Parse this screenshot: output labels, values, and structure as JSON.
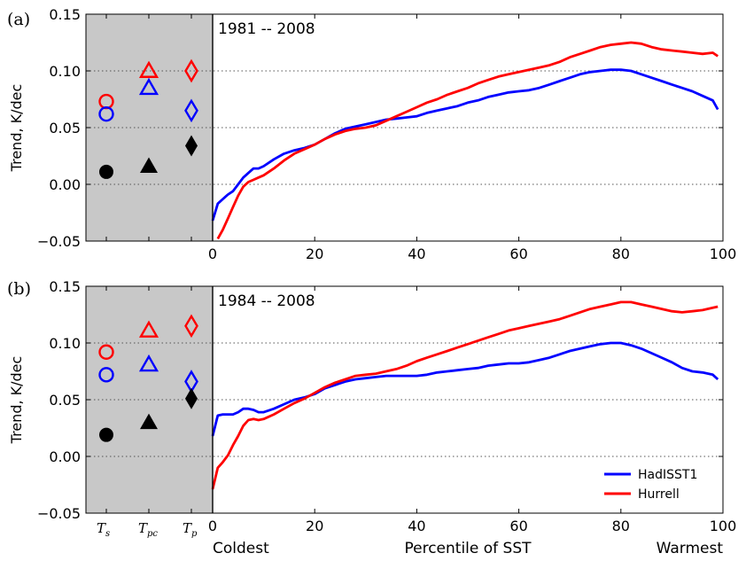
{
  "chart_data": [
    {
      "type": "line",
      "panel_label": "(a)",
      "period": "1981 -- 2008",
      "ylabel": "Trend, K/dec",
      "ylim": [
        -0.05,
        0.15
      ],
      "yticks": [
        "−0.05",
        "0.00",
        "0.05",
        "0.10",
        "0.15"
      ],
      "xlim": [
        0,
        100
      ],
      "xticks": [
        "0",
        "20",
        "40",
        "60",
        "80",
        "100"
      ],
      "grid_y": [
        0.0,
        0.05,
        0.1
      ],
      "markers": [
        {
          "category": "Ts",
          "shape": "circle",
          "color": "#ff0000",
          "filled": false,
          "value": 0.073
        },
        {
          "category": "Ts",
          "shape": "circle",
          "color": "#0000ff",
          "filled": false,
          "value": 0.062
        },
        {
          "category": "Ts",
          "shape": "circle",
          "color": "#000000",
          "filled": true,
          "value": 0.011
        },
        {
          "category": "Tpc",
          "shape": "triangle",
          "color": "#ff0000",
          "filled": false,
          "value": 0.1
        },
        {
          "category": "Tpc",
          "shape": "triangle",
          "color": "#0000ff",
          "filled": false,
          "value": 0.085
        },
        {
          "category": "Tpc",
          "shape": "triangle",
          "color": "#000000",
          "filled": true,
          "value": 0.016
        },
        {
          "category": "Tp",
          "shape": "diamond",
          "color": "#ff0000",
          "filled": false,
          "value": 0.1
        },
        {
          "category": "Tp",
          "shape": "diamond",
          "color": "#0000ff",
          "filled": false,
          "value": 0.065
        },
        {
          "category": "Tp",
          "shape": "diamond",
          "color": "#000000",
          "filled": true,
          "value": 0.034
        }
      ],
      "series": [
        {
          "color": "#0000ff",
          "x": [
            0,
            1,
            2,
            3,
            4,
            5,
            6,
            7,
            8,
            9,
            10,
            12,
            14,
            16,
            18,
            20,
            22,
            24,
            26,
            28,
            30,
            32,
            34,
            36,
            38,
            40,
            42,
            44,
            46,
            48,
            50,
            52,
            54,
            56,
            58,
            60,
            62,
            64,
            66,
            68,
            70,
            72,
            74,
            76,
            78,
            80,
            82,
            84,
            86,
            88,
            90,
            92,
            94,
            96,
            98,
            99
          ],
          "y": [
            -0.032,
            -0.017,
            -0.013,
            -0.009,
            -0.006,
            0.0,
            0.006,
            0.01,
            0.014,
            0.014,
            0.016,
            0.022,
            0.027,
            0.03,
            0.032,
            0.035,
            0.04,
            0.045,
            0.049,
            0.051,
            0.053,
            0.055,
            0.057,
            0.058,
            0.059,
            0.06,
            0.063,
            0.065,
            0.067,
            0.069,
            0.072,
            0.074,
            0.077,
            0.079,
            0.081,
            0.082,
            0.083,
            0.085,
            0.088,
            0.091,
            0.094,
            0.097,
            0.099,
            0.1,
            0.101,
            0.101,
            0.1,
            0.097,
            0.094,
            0.091,
            0.088,
            0.085,
            0.082,
            0.078,
            0.074,
            0.066
          ]
        },
        {
          "color": "#ff0000",
          "x": [
            1,
            2,
            3,
            4,
            5,
            6,
            7,
            8,
            9,
            10,
            12,
            14,
            16,
            18,
            20,
            22,
            24,
            26,
            28,
            30,
            32,
            34,
            36,
            38,
            40,
            42,
            44,
            46,
            48,
            50,
            52,
            54,
            56,
            58,
            60,
            62,
            64,
            66,
            68,
            70,
            72,
            74,
            76,
            78,
            80,
            82,
            84,
            86,
            88,
            90,
            92,
            94,
            96,
            98,
            99
          ],
          "y": [
            -0.048,
            -0.04,
            -0.03,
            -0.02,
            -0.01,
            -0.002,
            0.002,
            0.004,
            0.006,
            0.008,
            0.014,
            0.021,
            0.027,
            0.031,
            0.035,
            0.04,
            0.044,
            0.047,
            0.049,
            0.05,
            0.052,
            0.056,
            0.06,
            0.064,
            0.068,
            0.072,
            0.075,
            0.079,
            0.082,
            0.085,
            0.089,
            0.092,
            0.095,
            0.097,
            0.099,
            0.101,
            0.103,
            0.105,
            0.108,
            0.112,
            0.115,
            0.118,
            0.121,
            0.123,
            0.124,
            0.125,
            0.124,
            0.121,
            0.119,
            0.118,
            0.117,
            0.116,
            0.115,
            0.116,
            0.113
          ]
        }
      ]
    },
    {
      "type": "line",
      "panel_label": "(b)",
      "period": "1984 -- 2008",
      "ylabel": "Trend, K/dec",
      "ylim": [
        -0.05,
        0.15
      ],
      "yticks": [
        "−0.05",
        "0.00",
        "0.05",
        "0.10",
        "0.15"
      ],
      "xlim": [
        0,
        100
      ],
      "xticks": [
        "0",
        "20",
        "40",
        "60",
        "80",
        "100"
      ],
      "grid_y": [
        0.0,
        0.05,
        0.1
      ],
      "xlabel": "Percentile of SST",
      "xlabel_left": "Coldest",
      "xlabel_right": "Warmest",
      "categories": [
        "Ts",
        "Tpc",
        "Tp"
      ],
      "legend_position": "lower-right",
      "markers": [
        {
          "category": "Ts",
          "shape": "circle",
          "color": "#ff0000",
          "filled": false,
          "value": 0.092
        },
        {
          "category": "Ts",
          "shape": "circle",
          "color": "#0000ff",
          "filled": false,
          "value": 0.072
        },
        {
          "category": "Ts",
          "shape": "circle",
          "color": "#000000",
          "filled": true,
          "value": 0.019
        },
        {
          "category": "Tpc",
          "shape": "triangle",
          "color": "#ff0000",
          "filled": false,
          "value": 0.111
        },
        {
          "category": "Tpc",
          "shape": "triangle",
          "color": "#0000ff",
          "filled": false,
          "value": 0.081
        },
        {
          "category": "Tpc",
          "shape": "triangle",
          "color": "#000000",
          "filled": true,
          "value": 0.03
        },
        {
          "category": "Tp",
          "shape": "diamond",
          "color": "#ff0000",
          "filled": false,
          "value": 0.115
        },
        {
          "category": "Tp",
          "shape": "diamond",
          "color": "#0000ff",
          "filled": false,
          "value": 0.066
        },
        {
          "category": "Tp",
          "shape": "diamond",
          "color": "#000000",
          "filled": true,
          "value": 0.051
        }
      ],
      "series": [
        {
          "name": "HadISST1",
          "color": "#0000ff",
          "x": [
            0,
            1,
            2,
            3,
            4,
            5,
            6,
            7,
            8,
            9,
            10,
            12,
            14,
            16,
            18,
            20,
            22,
            24,
            26,
            28,
            30,
            32,
            34,
            36,
            38,
            40,
            42,
            44,
            46,
            48,
            50,
            52,
            54,
            56,
            58,
            60,
            62,
            64,
            66,
            68,
            70,
            72,
            74,
            76,
            78,
            80,
            82,
            84,
            86,
            88,
            90,
            92,
            94,
            96,
            98,
            99
          ],
          "y": [
            0.018,
            0.036,
            0.037,
            0.037,
            0.037,
            0.039,
            0.042,
            0.042,
            0.041,
            0.039,
            0.039,
            0.042,
            0.046,
            0.05,
            0.052,
            0.055,
            0.06,
            0.063,
            0.066,
            0.068,
            0.069,
            0.07,
            0.071,
            0.071,
            0.071,
            0.071,
            0.072,
            0.074,
            0.075,
            0.076,
            0.077,
            0.078,
            0.08,
            0.081,
            0.082,
            0.082,
            0.083,
            0.085,
            0.087,
            0.09,
            0.093,
            0.095,
            0.097,
            0.099,
            0.1,
            0.1,
            0.098,
            0.095,
            0.091,
            0.087,
            0.083,
            0.078,
            0.075,
            0.074,
            0.072,
            0.068
          ]
        },
        {
          "name": "Hurrell",
          "color": "#ff0000",
          "x": [
            0,
            1,
            2,
            3,
            4,
            5,
            6,
            7,
            8,
            9,
            10,
            12,
            14,
            16,
            18,
            20,
            22,
            24,
            26,
            28,
            30,
            32,
            34,
            36,
            38,
            40,
            42,
            44,
            46,
            48,
            50,
            52,
            54,
            56,
            58,
            60,
            62,
            64,
            66,
            68,
            70,
            72,
            74,
            76,
            78,
            80,
            82,
            84,
            86,
            88,
            90,
            92,
            94,
            96,
            98,
            99
          ],
          "y": [
            -0.029,
            -0.01,
            -0.005,
            0.001,
            0.01,
            0.018,
            0.027,
            0.032,
            0.033,
            0.032,
            0.033,
            0.037,
            0.042,
            0.047,
            0.051,
            0.056,
            0.061,
            0.065,
            0.068,
            0.071,
            0.072,
            0.073,
            0.075,
            0.077,
            0.08,
            0.084,
            0.087,
            0.09,
            0.093,
            0.096,
            0.099,
            0.102,
            0.105,
            0.108,
            0.111,
            0.113,
            0.115,
            0.117,
            0.119,
            0.121,
            0.124,
            0.127,
            0.13,
            0.132,
            0.134,
            0.136,
            0.136,
            0.134,
            0.132,
            0.13,
            0.128,
            0.127,
            0.128,
            0.129,
            0.131,
            0.132
          ]
        }
      ]
    }
  ]
}
